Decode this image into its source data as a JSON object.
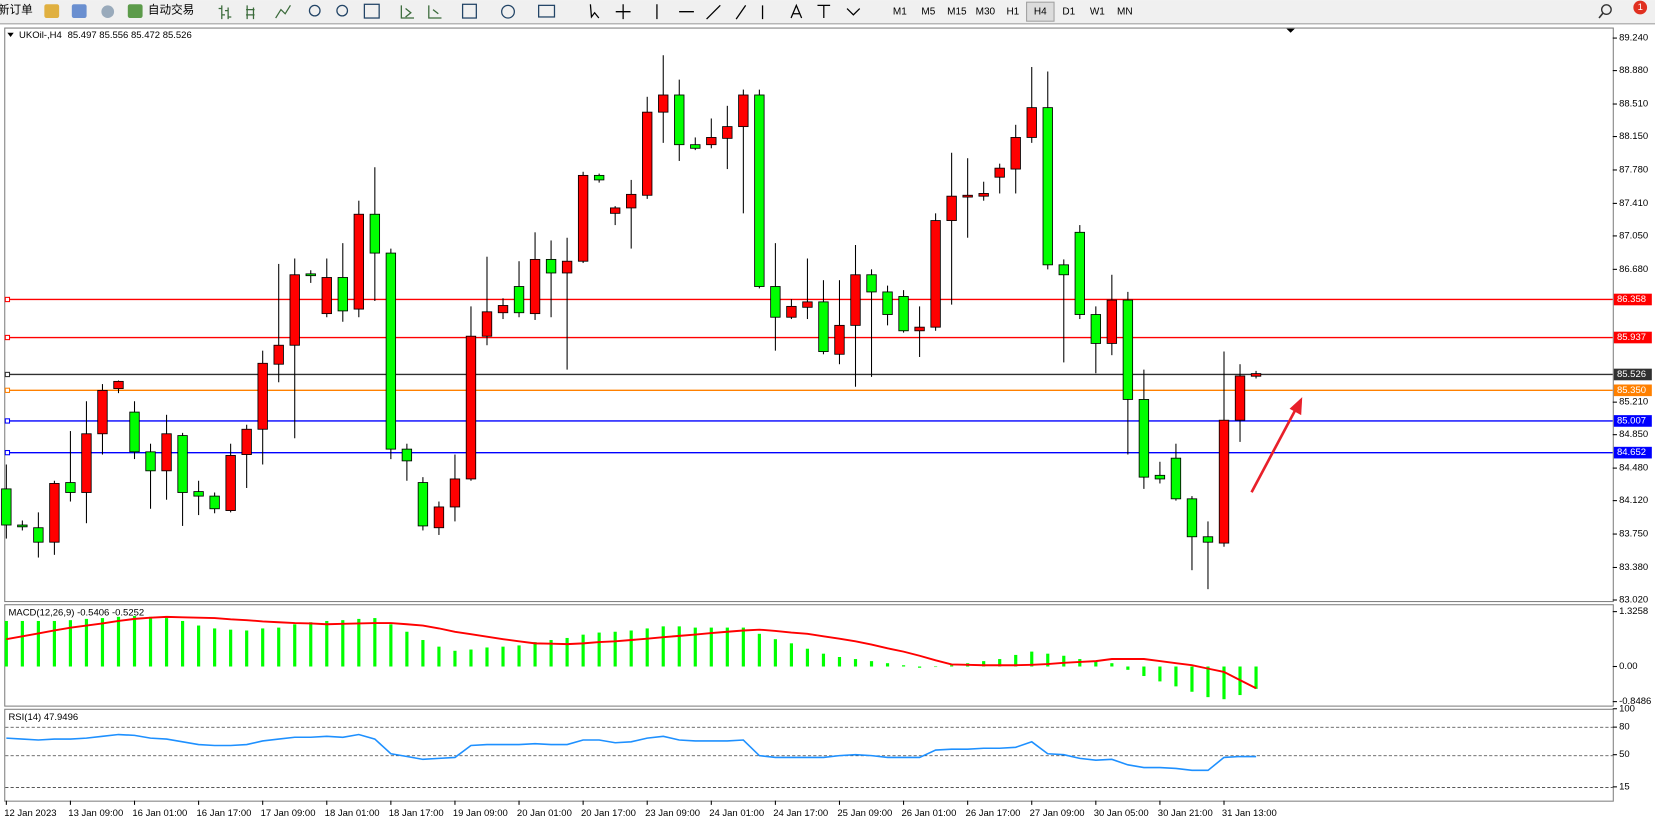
{
  "toolbar": {
    "new_order": "新订单",
    "auto_trading": "自动交易",
    "timeframes": [
      "M1",
      "M5",
      "M15",
      "M30",
      "H1",
      "H4",
      "D1",
      "W1",
      "MN"
    ],
    "active_timeframe": "H4",
    "notifications": "1"
  },
  "chart_data": [
    {
      "type": "candlestick",
      "title": "UKOil-,H4",
      "categories": [
        "12 Jan 2023",
        null,
        null,
        null,
        "13 Jan 09:00",
        null,
        null,
        null,
        "16 Jan 01:00",
        null,
        null,
        null,
        "16 Jan 17:00",
        null,
        null,
        null,
        "17 Jan 09:00",
        null,
        null,
        null,
        "18 Jan 01:00",
        null,
        null,
        null,
        "18 Jan 17:00",
        null,
        null,
        null,
        "19 Jan 09:00",
        null,
        null,
        null,
        "20 Jan 01:00",
        null,
        null,
        null,
        "20 Jan 17:00",
        null,
        null,
        null,
        "23 Jan 09:00",
        null,
        null,
        null,
        "24 Jan 01:00",
        null,
        null,
        null,
        "24 Jan 17:00",
        null,
        null,
        null,
        "25 Jan 09:00",
        null,
        null,
        null,
        "26 Jan 01:00",
        null,
        null,
        null,
        "26 Jan 17:00",
        null,
        null,
        null,
        "27 Jan 09:00",
        null,
        null,
        null,
        "30 Jan 05:00",
        null,
        null,
        null,
        "30 Jan 21:00",
        null,
        null,
        null,
        "31 Jan 13:00",
        null,
        null
      ],
      "open": [
        84.25,
        83.85,
        83.82,
        83.66,
        84.32,
        84.21,
        84.86,
        85.36,
        85.1,
        84.66,
        84.45,
        84.84,
        84.22,
        84.17,
        84.01,
        84.63,
        84.91,
        85.63,
        85.84,
        86.63,
        86.19,
        86.59,
        86.24,
        87.29,
        86.86,
        84.69,
        84.32,
        83.82,
        84.05,
        84.36,
        85.94,
        86.2,
        86.49,
        86.19,
        86.79,
        86.64,
        86.77,
        87.72,
        87.3,
        87.36,
        87.5,
        88.42,
        88.61,
        88.06,
        88.06,
        88.13,
        88.26,
        88.61,
        86.49,
        86.15,
        86.26,
        86.32,
        85.74,
        86.06,
        86.62,
        86.43,
        86.38,
        86.0,
        86.04,
        87.22,
        87.48,
        87.49,
        87.7,
        87.79,
        88.14,
        88.47,
        86.73,
        87.09,
        86.18,
        85.86,
        86.34,
        85.24,
        84.4,
        84.59,
        84.14,
        83.72,
        83.65,
        85.01,
        85.497
      ],
      "high": [
        84.52,
        83.9,
        83.99,
        84.34,
        84.89,
        85.22,
        85.41,
        85.45,
        85.22,
        84.75,
        85.07,
        84.87,
        84.34,
        84.21,
        84.75,
        84.96,
        85.78,
        86.74,
        86.8,
        86.67,
        86.8,
        86.97,
        87.44,
        87.81,
        86.91,
        84.75,
        84.38,
        84.11,
        84.63,
        86.27,
        86.82,
        86.36,
        86.77,
        87.09,
        87.0,
        87.03,
        87.76,
        87.74,
        87.38,
        87.67,
        88.59,
        89.05,
        88.78,
        88.14,
        88.35,
        88.49,
        88.67,
        88.67,
        86.97,
        86.35,
        86.8,
        86.56,
        86.56,
        86.95,
        86.68,
        86.5,
        86.45,
        86.27,
        87.3,
        87.97,
        87.91,
        87.65,
        87.85,
        88.28,
        88.92,
        88.87,
        86.79,
        87.17,
        86.27,
        86.62,
        86.43,
        85.57,
        84.55,
        84.75,
        84.17,
        83.89,
        85.77,
        85.63,
        85.556
      ],
      "low": [
        83.7,
        83.79,
        83.49,
        83.52,
        84.11,
        83.87,
        84.63,
        85.31,
        84.58,
        84.03,
        84.13,
        83.84,
        83.96,
        83.98,
        83.99,
        84.26,
        84.52,
        85.43,
        84.81,
        86.53,
        86.15,
        86.1,
        86.15,
        86.33,
        84.58,
        84.34,
        83.79,
        83.74,
        83.89,
        84.34,
        85.84,
        86.13,
        86.15,
        86.12,
        86.15,
        85.57,
        86.75,
        87.64,
        87.17,
        86.91,
        87.46,
        88.08,
        87.88,
        88.0,
        88.02,
        87.79,
        87.3,
        86.47,
        85.78,
        86.13,
        86.13,
        85.74,
        85.63,
        85.38,
        85.49,
        86.06,
        85.98,
        85.71,
        86.0,
        86.29,
        87.03,
        87.44,
        87.52,
        87.52,
        88.08,
        86.68,
        85.65,
        86.13,
        85.53,
        85.73,
        84.63,
        84.25,
        84.31,
        84.12,
        83.35,
        83.14,
        83.61,
        84.77,
        85.472
      ],
      "close": [
        83.85,
        83.83,
        83.66,
        84.31,
        84.21,
        84.86,
        85.34,
        85.44,
        84.66,
        84.45,
        84.86,
        84.21,
        84.17,
        84.03,
        84.62,
        84.91,
        85.64,
        85.84,
        86.62,
        86.61,
        86.59,
        86.22,
        87.29,
        86.86,
        84.69,
        84.56,
        83.84,
        84.05,
        84.36,
        85.94,
        86.21,
        86.28,
        86.2,
        86.79,
        86.64,
        86.77,
        87.72,
        87.67,
        87.36,
        87.51,
        88.42,
        88.61,
        88.06,
        88.02,
        88.14,
        88.26,
        88.61,
        86.49,
        86.15,
        86.27,
        86.32,
        85.77,
        86.06,
        86.62,
        86.43,
        86.18,
        86.0,
        86.04,
        87.22,
        87.49,
        87.5,
        87.52,
        87.8,
        88.14,
        88.47,
        86.73,
        86.62,
        86.18,
        85.86,
        86.34,
        85.24,
        84.38,
        84.36,
        84.14,
        83.72,
        83.66,
        85.01,
        85.5,
        85.526
      ],
      "up_color": "#ff0000",
      "down_color": "#00ff00",
      "ylim": [
        82.997,
        89.345
      ],
      "yticks": [
        {
          "value": 89.24,
          "label": "89.240"
        },
        {
          "value": 88.88,
          "label": "88.880"
        },
        {
          "value": 88.51,
          "label": "88.510"
        },
        {
          "value": 88.15,
          "label": "88.150"
        },
        {
          "value": 87.78,
          "label": "87.780"
        },
        {
          "value": 87.41,
          "label": "87.410"
        },
        {
          "value": 87.05,
          "label": "87.050"
        },
        {
          "value": 86.68,
          "label": "86.680"
        },
        {
          "value": 85.21,
          "label": "85.210"
        },
        {
          "value": 84.85,
          "label": "84.850"
        },
        {
          "value": 84.48,
          "label": "84.480"
        },
        {
          "value": 84.12,
          "label": "84.120"
        },
        {
          "value": 83.75,
          "label": "83.750"
        },
        {
          "value": 83.38,
          "label": "83.380"
        },
        {
          "value": 83.02,
          "label": "83.020"
        }
      ],
      "levels": [
        {
          "value": 86.358,
          "color": "#ff0000"
        },
        {
          "value": 85.937,
          "color": "#ff0000"
        },
        {
          "value": 85.526,
          "color": "#303030"
        },
        {
          "value": 85.35,
          "label": "85.350",
          "color": "#ff8000"
        },
        {
          "value": 85.007,
          "color": "#0000ff"
        },
        {
          "value": 84.652,
          "color": "#0000ff"
        }
      ]
    },
    {
      "type": "macd",
      "title": "MACD(12,26,9)",
      "histogram": {
        "color": "#00ff00",
        "values": [
          1.1,
          1.1,
          1.1,
          1.1,
          1.12,
          1.15,
          1.17,
          1.2,
          1.22,
          1.2,
          1.17,
          1.1,
          0.99,
          0.92,
          0.89,
          0.87,
          0.92,
          0.94,
          1.02,
          1.07,
          1.1,
          1.12,
          1.15,
          1.17,
          1.02,
          0.84,
          0.64,
          0.48,
          0.38,
          0.41,
          0.46,
          0.48,
          0.51,
          0.59,
          0.64,
          0.69,
          0.77,
          0.82,
          0.84,
          0.87,
          0.92,
          0.97,
          0.97,
          0.94,
          0.94,
          0.94,
          0.94,
          0.79,
          0.66,
          0.56,
          0.43,
          0.31,
          0.23,
          0.18,
          0.13,
          0.08,
          0.03,
          -0.03,
          0,
          0.03,
          0.08,
          0.13,
          0.18,
          0.28,
          0.36,
          0.31,
          0.26,
          0.18,
          0.13,
          0.08,
          -0.08,
          -0.23,
          -0.36,
          -0.48,
          -0.61,
          -0.74,
          -0.79,
          -0.69,
          -0.5406
        ]
      },
      "signal": {
        "color": "#ff0000",
        "values": [
          0.66,
          0.73,
          0.8,
          0.87,
          0.94,
          0.99,
          1.04,
          1.1,
          1.15,
          1.18,
          1.2,
          1.19,
          1.18,
          1.17,
          1.14,
          1.12,
          1.09,
          1.07,
          1.05,
          1.04,
          1.02,
          1.03,
          1.04,
          1.05,
          1.05,
          1.02,
          0.99,
          0.92,
          0.84,
          0.78,
          0.72,
          0.66,
          0.61,
          0.56,
          0.55,
          0.54,
          0.56,
          0.59,
          0.61,
          0.64,
          0.67,
          0.71,
          0.74,
          0.77,
          0.81,
          0.84,
          0.87,
          0.89,
          0.86,
          0.82,
          0.79,
          0.73,
          0.67,
          0.61,
          0.53,
          0.44,
          0.36,
          0.26,
          0.15,
          0.05,
          0.04,
          0.03,
          0.03,
          0.03,
          0.04,
          0.06,
          0.09,
          0.11,
          0.13,
          0.18,
          0.18,
          0.18,
          0.13,
          0.08,
          0.03,
          -0.05,
          -0.13,
          -0.33,
          -0.5252
        ]
      },
      "ylim": [
        -0.944,
        1.48
      ],
      "yticks": [
        1.3258,
        {
          "value": 0,
          "label": "0.00"
        },
        -0.8486
      ]
    },
    {
      "type": "line",
      "title": "RSI(14)",
      "color": "#1e90ff",
      "values": [
        68,
        67,
        66,
        67,
        67,
        68,
        70,
        72,
        71,
        68,
        67,
        64,
        61,
        60,
        60,
        61,
        65,
        67,
        69,
        69,
        70,
        69,
        72,
        67,
        51,
        48,
        45,
        46,
        47,
        60,
        61,
        61,
        61,
        62,
        61,
        61,
        66,
        66,
        63,
        64,
        68,
        70,
        66,
        65,
        65,
        65,
        66,
        49,
        47,
        47,
        47,
        47,
        49,
        50,
        49,
        47,
        47,
        47,
        55,
        56,
        56,
        57,
        57,
        58,
        64,
        51,
        50,
        46,
        44,
        45,
        39,
        36,
        36,
        35,
        33,
        33,
        47,
        48,
        47.9496
      ],
      "ylim": [
        0,
        100
      ],
      "yticks": [
        100,
        80,
        50,
        15
      ],
      "levels": [
        80,
        50,
        15
      ]
    }
  ]
}
